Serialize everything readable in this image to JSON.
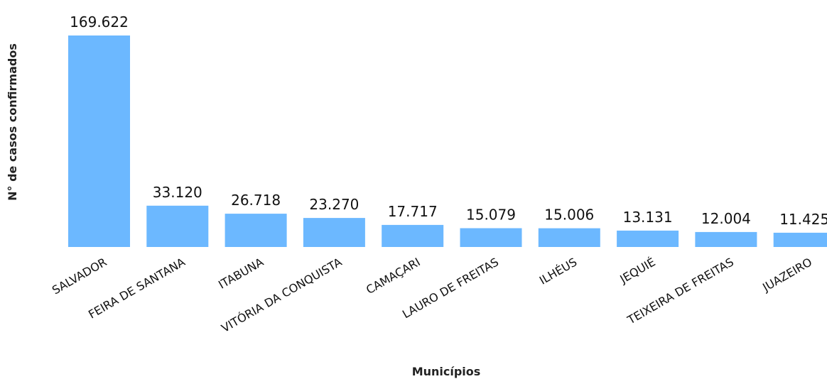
{
  "chart_data": {
    "type": "bar",
    "title": "",
    "xlabel": "Municípios",
    "ylabel": "N° de casos confirmados",
    "categories": [
      "SALVADOR",
      "FEIRA DE SANTANA",
      "ITABUNA",
      "VITÓRIA DA CONQUISTA",
      "CAMAÇARI",
      "LAURO DE FREITAS",
      "ILHÉUS",
      "JEQUIÉ",
      "TEIXEIRA DE FREITAS",
      "JUAZEIRO"
    ],
    "values": [
      169622,
      33120,
      26718,
      23270,
      17717,
      15079,
      15006,
      13131,
      12004,
      11425
    ],
    "data_labels": [
      "169.622",
      "33.120",
      "26.718",
      "23.270",
      "17.717",
      "15.079",
      "15.006",
      "13.131",
      "12.004",
      "11.425"
    ],
    "ylim": [
      0,
      169622
    ],
    "grid": false,
    "legend": "none",
    "bar_color": "#6cb8ff"
  }
}
